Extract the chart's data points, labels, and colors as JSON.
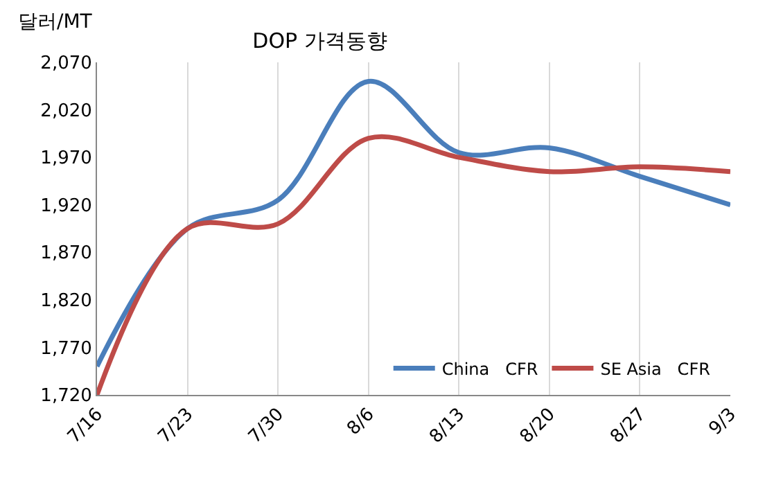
{
  "chart_data": {
    "type": "line",
    "title": "DOP 가격동향",
    "ylabel": "달러/MT",
    "categories": [
      "7/16",
      "7/23",
      "7/30",
      "8/6",
      "8/13",
      "8/20",
      "8/27",
      "9/3"
    ],
    "series": [
      {
        "name": "China   CFR",
        "color": "#4a7ebb",
        "values": [
          1750,
          1895,
          1925,
          2050,
          1975,
          1980,
          1950,
          1920
        ]
      },
      {
        "name": "SE Asia   CFR",
        "color": "#be4b48",
        "values": [
          1720,
          1895,
          1900,
          1990,
          1970,
          1955,
          1960,
          1955
        ]
      }
    ],
    "ylim": [
      1720,
      2070
    ],
    "yticks": [
      {
        "value": 1720,
        "label": "1,720"
      },
      {
        "value": 1770,
        "label": "1,770"
      },
      {
        "value": 1820,
        "label": "1,820"
      },
      {
        "value": 1870,
        "label": "1,870"
      },
      {
        "value": 1920,
        "label": "1,920"
      },
      {
        "value": 1970,
        "label": "1,970"
      },
      {
        "value": 2020,
        "label": "2,020"
      },
      {
        "value": 2070,
        "label": "2,070"
      }
    ],
    "grid": "x",
    "legend": "bottom",
    "marker": "none",
    "line_style": "solid"
  }
}
